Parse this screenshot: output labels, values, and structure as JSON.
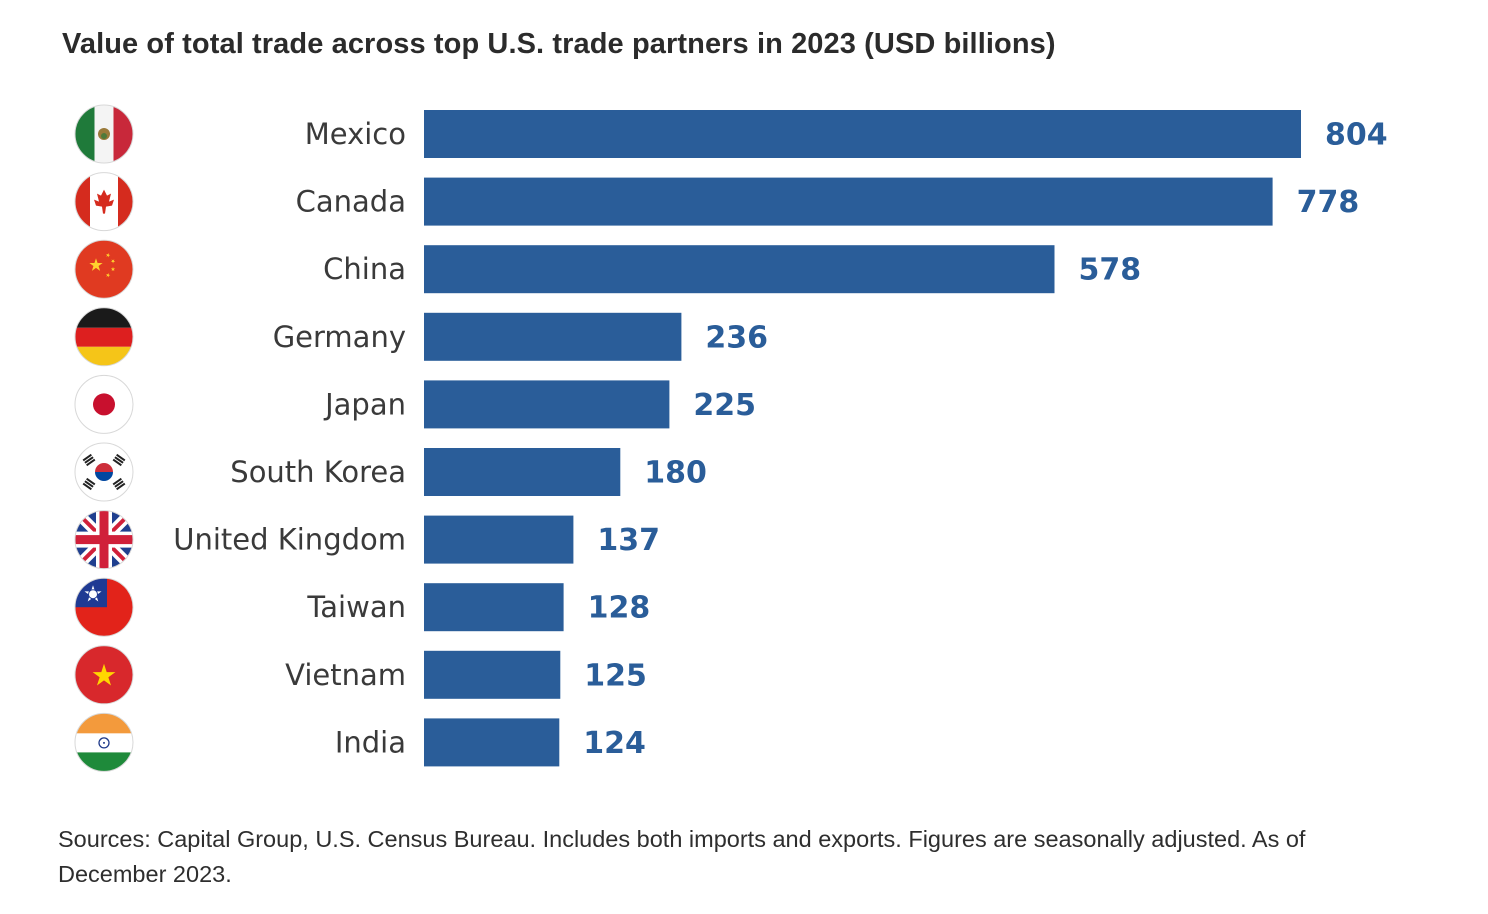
{
  "chart_data": {
    "type": "bar",
    "orientation": "horizontal",
    "title": "Value of total trade across top U.S. trade partners in 2023 (USD billions)",
    "xlabel": "",
    "ylabel": "",
    "categories": [
      "Mexico",
      "Canada",
      "China",
      "Germany",
      "Japan",
      "South Korea",
      "United Kingdom",
      "Taiwan",
      "Vietnam",
      "India"
    ],
    "values": [
      804,
      778,
      578,
      236,
      225,
      180,
      137,
      128,
      125,
      124
    ],
    "flag_icons": [
      "mexico-flag-icon",
      "canada-flag-icon",
      "china-flag-icon",
      "germany-flag-icon",
      "japan-flag-icon",
      "south-korea-flag-icon",
      "united-kingdom-flag-icon",
      "taiwan-flag-icon",
      "vietnam-flag-icon",
      "india-flag-icon"
    ],
    "xlim": [
      0,
      804
    ],
    "grid": false,
    "bar_color": "#2a5d99",
    "value_label_color": "#2a5d99"
  },
  "footnote": "Sources: Capital Group, U.S. Census Bureau. Includes both imports and exports. Figures are seasonally adjusted. As of December 2023."
}
